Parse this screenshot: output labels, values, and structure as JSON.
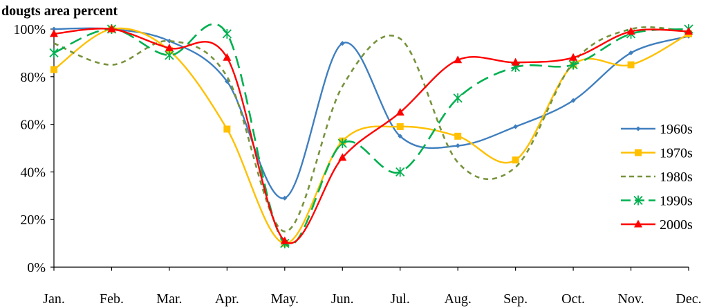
{
  "chart_data": {
    "type": "line",
    "title": "dougts area percent",
    "xlabel": "",
    "ylabel": "",
    "categories": [
      "Jan.",
      "Feb.",
      "Mar.",
      "Apr.",
      "May.",
      "Jun.",
      "Jul.",
      "Aug.",
      "Sep.",
      "Oct.",
      "Nov.",
      "Dec."
    ],
    "ylim": [
      0,
      100
    ],
    "yticks": [
      0,
      20,
      40,
      60,
      80,
      100
    ],
    "ytick_labels": [
      "0%",
      "20%",
      "40%",
      "60%",
      "80%",
      "100%"
    ],
    "grid": false,
    "legend_position": "right",
    "series": [
      {
        "name": "1960s",
        "color": "#3f7fbf",
        "marker": "diamond",
        "dash": "solid",
        "values": [
          100,
          100,
          95,
          78,
          29,
          94,
          55,
          51,
          59,
          70,
          90,
          97
        ]
      },
      {
        "name": "1970s",
        "color": "#ffc000",
        "marker": "square",
        "dash": "solid",
        "values": [
          83,
          100,
          91,
          58,
          10,
          53,
          59,
          55,
          45,
          85,
          85,
          98
        ]
      },
      {
        "name": "1980s",
        "color": "#77933c",
        "marker": "none",
        "dash": "short-dash",
        "values": [
          94,
          85,
          95,
          80,
          15,
          76,
          96,
          44,
          42,
          86,
          100,
          99
        ]
      },
      {
        "name": "1990s",
        "color": "#00b050",
        "marker": "star",
        "dash": "long-dash",
        "values": [
          90,
          100,
          89,
          98,
          10,
          52,
          40,
          71,
          84,
          85,
          98,
          100
        ]
      },
      {
        "name": "2000s",
        "color": "#ff0000",
        "marker": "triangle",
        "dash": "solid",
        "values": [
          98,
          100,
          92,
          88,
          11,
          46,
          65,
          87,
          86,
          88,
          99,
          99
        ]
      }
    ]
  }
}
